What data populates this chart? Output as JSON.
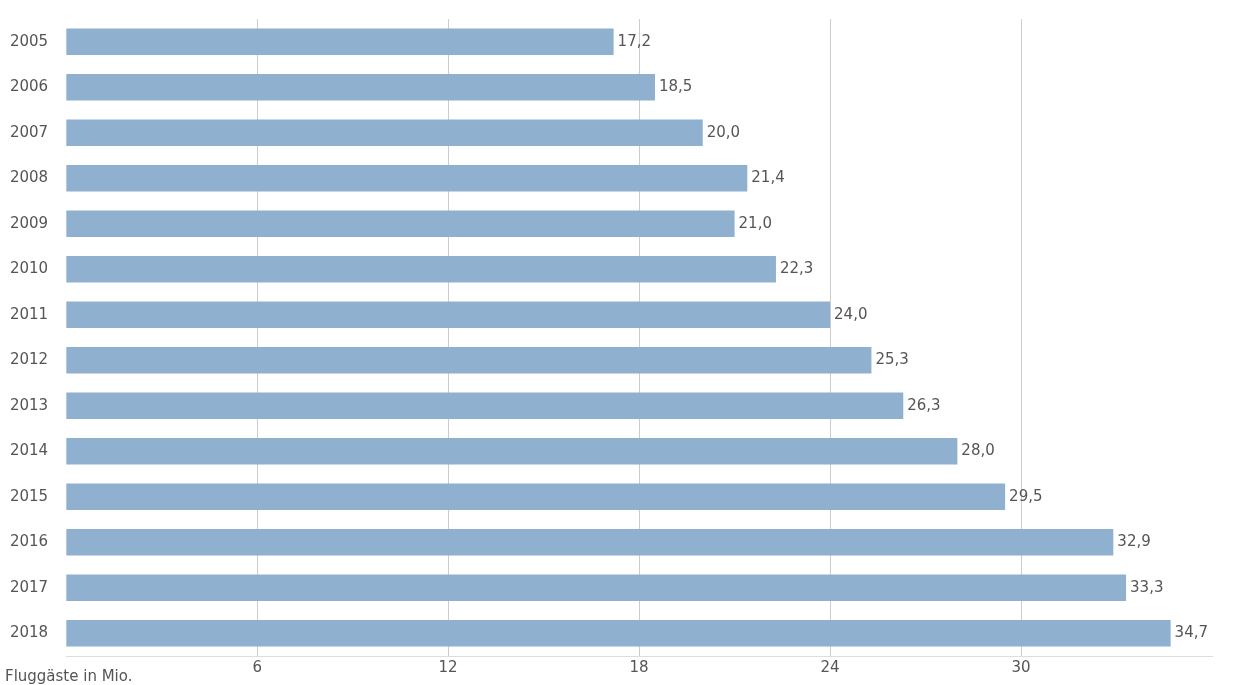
{
  "chart_data": {
    "type": "bar",
    "orientation": "horizontal",
    "xlabel": "Fluggäste in Mio.",
    "categories": [
      "2005",
      "2006",
      "2007",
      "2008",
      "2009",
      "2010",
      "2011",
      "2012",
      "2013",
      "2014",
      "2015",
      "2016",
      "2017",
      "2018"
    ],
    "values": [
      17.2,
      18.5,
      20.0,
      21.4,
      21.0,
      22.3,
      24.0,
      25.3,
      26.3,
      28.0,
      29.5,
      32.9,
      33.3,
      34.7
    ],
    "value_labels": [
      "17,2",
      "18,5",
      "20,0",
      "21,4",
      "21,0",
      "22,3",
      "24,0",
      "25,3",
      "26,3",
      "28,0",
      "29,5",
      "32,9",
      "33,3",
      "34,7"
    ],
    "color": "#8fb0cf",
    "xlim": [
      0,
      36
    ],
    "xticks": [
      6,
      12,
      18,
      24,
      30
    ],
    "grid": "x",
    "legend": false
  }
}
